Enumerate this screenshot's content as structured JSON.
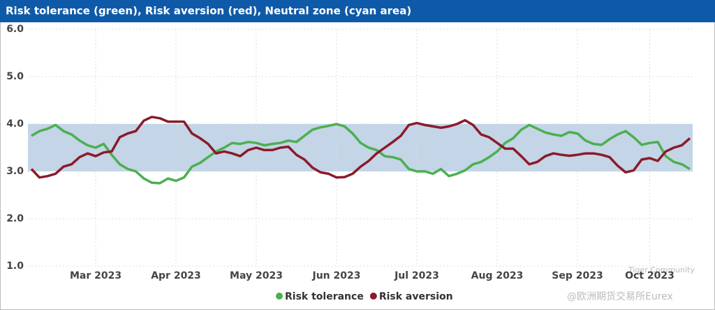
{
  "chart_data": {
    "type": "line",
    "title": "Risk tolerance (green), Risk aversion (red), Neutral zone (cyan area)",
    "categories": [
      null,
      null,
      null,
      null,
      null,
      null,
      null,
      null,
      "Mar 2023",
      null,
      null,
      null,
      null,
      null,
      null,
      null,
      null,
      null,
      "Apr 2023",
      null,
      null,
      null,
      null,
      null,
      null,
      null,
      null,
      null,
      "May 2023",
      null,
      null,
      null,
      null,
      null,
      null,
      null,
      null,
      null,
      "Jun 2023",
      null,
      null,
      null,
      null,
      null,
      null,
      null,
      null,
      null,
      "Jul 2023",
      null,
      null,
      null,
      null,
      null,
      null,
      null,
      null,
      null,
      "Aug 2023",
      null,
      null,
      null,
      null,
      null,
      null,
      null,
      null,
      null,
      "Sep 2023",
      null,
      null,
      null,
      null,
      null,
      null,
      null,
      null,
      "Oct 2023",
      null,
      null,
      null,
      null,
      null
    ],
    "series": [
      {
        "name": "Risk tolerance",
        "color": "#4caf50",
        "values": [
          3.75,
          3.85,
          3.9,
          3.98,
          3.85,
          3.78,
          3.65,
          3.55,
          3.5,
          3.58,
          3.35,
          3.15,
          3.05,
          3.0,
          2.85,
          2.76,
          2.75,
          2.85,
          2.8,
          2.87,
          3.1,
          3.18,
          3.3,
          3.42,
          3.5,
          3.6,
          3.58,
          3.62,
          3.6,
          3.55,
          3.58,
          3.6,
          3.65,
          3.62,
          3.75,
          3.88,
          3.93,
          3.96,
          4.0,
          3.95,
          3.8,
          3.6,
          3.5,
          3.45,
          3.32,
          3.3,
          3.25,
          3.05,
          3.0,
          3.0,
          2.95,
          3.05,
          2.9,
          2.95,
          3.02,
          3.15,
          3.2,
          3.3,
          3.42,
          3.6,
          3.7,
          3.88,
          3.98,
          3.9,
          3.82,
          3.78,
          3.75,
          3.83,
          3.8,
          3.65,
          3.58,
          3.56,
          3.68,
          3.78,
          3.85,
          3.72,
          3.56,
          3.6,
          3.62,
          3.32,
          3.2,
          3.15,
          3.05
        ]
      },
      {
        "name": "Risk aversion",
        "color": "#8b1a2b",
        "values": [
          3.05,
          2.87,
          2.9,
          2.95,
          3.1,
          3.15,
          3.3,
          3.38,
          3.32,
          3.4,
          3.42,
          3.72,
          3.8,
          3.85,
          4.07,
          4.15,
          4.12,
          4.05,
          4.05,
          4.05,
          3.8,
          3.7,
          3.58,
          3.38,
          3.42,
          3.38,
          3.32,
          3.45,
          3.5,
          3.45,
          3.45,
          3.5,
          3.52,
          3.35,
          3.25,
          3.08,
          2.98,
          2.95,
          2.87,
          2.88,
          2.95,
          3.1,
          3.22,
          3.38,
          3.5,
          3.62,
          3.75,
          3.98,
          4.02,
          3.98,
          3.95,
          3.92,
          3.95,
          4.0,
          4.08,
          3.98,
          3.78,
          3.72,
          3.6,
          3.48,
          3.48,
          3.32,
          3.15,
          3.2,
          3.32,
          3.38,
          3.35,
          3.33,
          3.35,
          3.38,
          3.38,
          3.35,
          3.3,
          3.12,
          2.98,
          3.02,
          3.25,
          3.28,
          3.22,
          3.42,
          3.5,
          3.55,
          3.7
        ]
      }
    ],
    "band": [
      3,
      4
    ],
    "band_color": "#c3d5e6",
    "ylim": [
      1,
      6
    ],
    "yticks": [
      {
        "value": 1,
        "label": "1.0"
      },
      {
        "value": 2,
        "label": "2.0"
      },
      {
        "value": 3,
        "label": "3.0"
      },
      {
        "value": 4,
        "label": "4.0"
      },
      {
        "value": 5,
        "label": "5.0"
      },
      {
        "value": 6,
        "label": "6.0"
      }
    ],
    "grid": true,
    "legend": "bottom"
  },
  "watermark": [
    "Tiger Community",
    "@欧洲期货交易所Eurex"
  ]
}
